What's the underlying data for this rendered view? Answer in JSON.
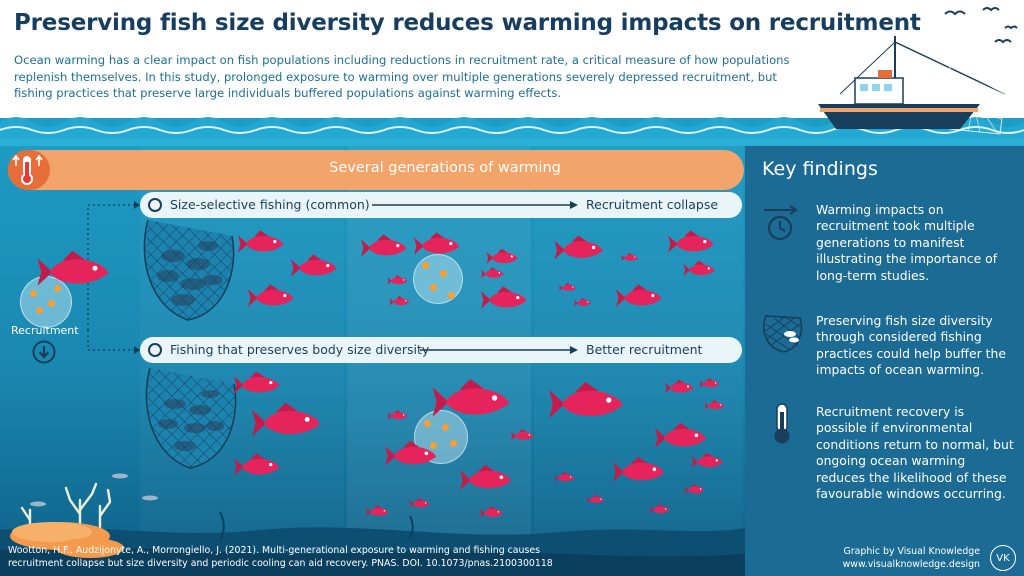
{
  "header": {
    "title": "Preserving fish size diversity reduces warming impacts on recruitment",
    "intro": "Ocean warming has a clear impact on fish populations including reductions in recruitment rate, a critical measure of how populations replenish themselves. In this study, prolonged exposure to warming over multiple generations severely depressed recruitment, but fishing practices that preserve large individuals buffered populations against warming effects."
  },
  "diagram": {
    "warming_label": "Several generations of warming",
    "recruitment_label": "Recruitment",
    "rows": [
      {
        "label": "Size-selective fishing (common)",
        "outcome": "Recruitment collapse"
      },
      {
        "label": "Fishing that preserves body size diversity",
        "outcome": "Better recruitment"
      }
    ]
  },
  "findings": {
    "title": "Key findings",
    "items": [
      {
        "icon": "clock-icon",
        "text": "Warming impacts on recruitment took multiple generations to manifest illustrating the importance of long-term studies."
      },
      {
        "icon": "fish-net-icon",
        "text": "Preserving fish size diversity through considered fishing practices could help buffer the impacts of ocean warming."
      },
      {
        "icon": "thermometer-icon",
        "text": "Recruitment recovery is possible if environmental conditions return to normal, but ongoing ocean warming reduces the likelihood of these favourable windows occurring."
      }
    ]
  },
  "footer": {
    "citation": "Wootton, H.F., Audzijonyte, A., Morrongiello, J. (2021). Multi-generational exposure to warming and fishing causes recruitment collapse but size diversity and periodic cooling can aid recovery. PNAS. DOI. 10.1073/pnas.2100300118",
    "credit_line1": "Graphic by Visual Knowledge",
    "credit_line2": "www.visualknowledge.design",
    "logo_text": "VK"
  },
  "colors": {
    "title": "#173e5f",
    "intro": "#1d6f98",
    "ocean": "#1a87b0",
    "findings_panel": "#1b6b95",
    "warming_pill": "#f3a46a",
    "fish": "#e4245a",
    "eggs": "#f4a035"
  }
}
